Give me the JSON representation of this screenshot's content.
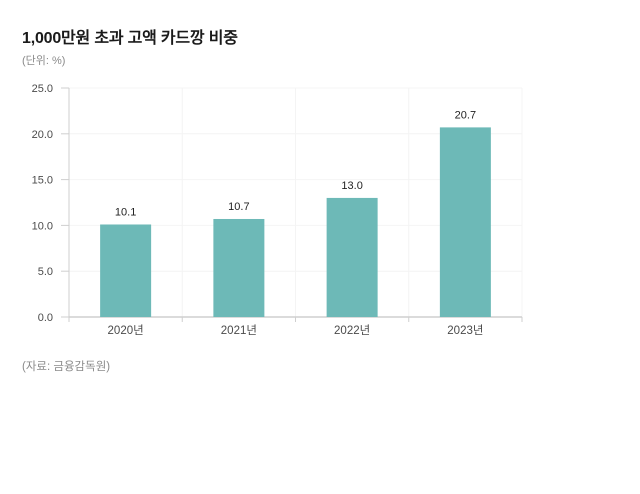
{
  "header": {
    "title": "1,000만원 초과 고액 카드깡 비중",
    "unit_label": "(단위: %)"
  },
  "footer": {
    "source": "(자료: 금융감독원)"
  },
  "chart_data": {
    "type": "bar",
    "title": "1,000만원 초과 고액 카드깡 비중",
    "subtitle": "(단위: %)",
    "categories": [
      "2020년",
      "2021년",
      "2022년",
      "2023년"
    ],
    "values": [
      10.1,
      10.7,
      13.0,
      20.7
    ],
    "value_labels": [
      "10.1",
      "10.7",
      "13.0",
      "20.7"
    ],
    "xlabel": "",
    "ylabel": "",
    "ylim": [
      0,
      25
    ],
    "ytick_step": 5,
    "ytick_labels": [
      "0.0",
      "5.0",
      "10.0",
      "15.0",
      "20.0",
      "25.0"
    ],
    "grid": true,
    "legend_position": "none",
    "source": "(자료: 금융감독원)"
  },
  "colors": {
    "bar": "#6db9b7",
    "axis": "#cfcfcf",
    "grid": "#f4f4f4",
    "tick_label": "#4a4a4a",
    "value_label": "#1f1f1f",
    "title": "#1a1a1a",
    "muted": "#8a8a8a",
    "background": "#ffffff"
  }
}
